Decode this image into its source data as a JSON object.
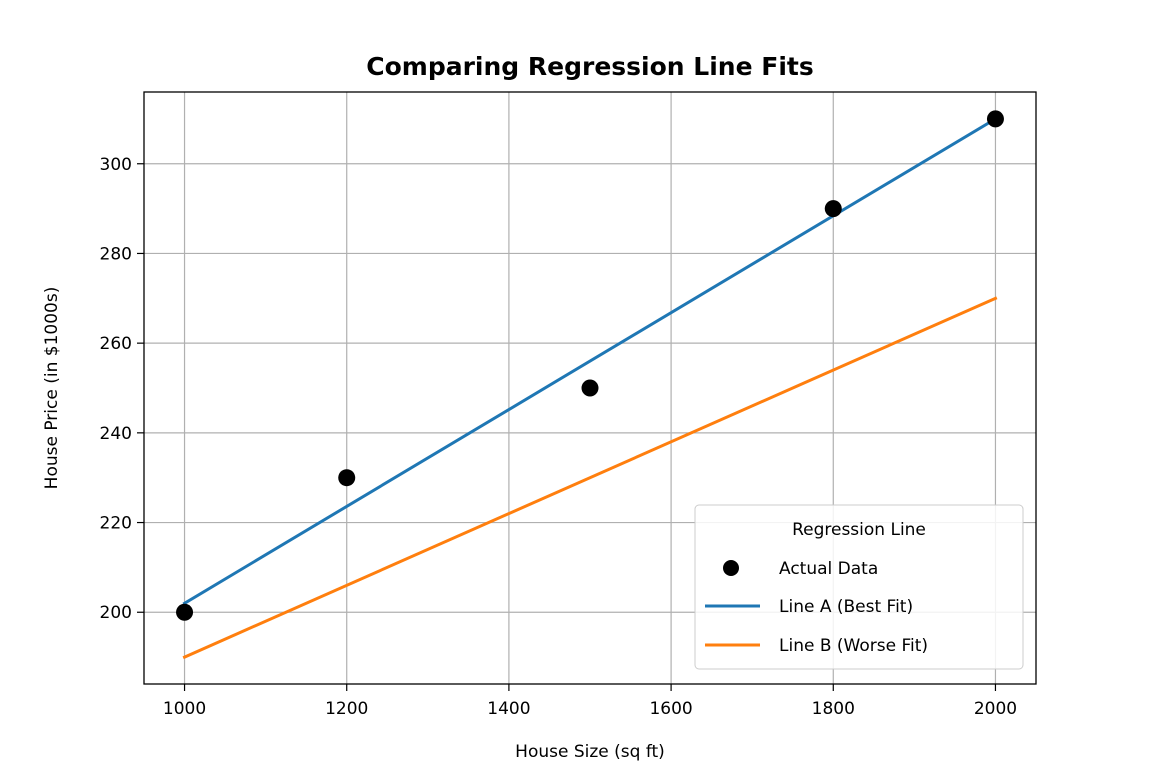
{
  "chart_data": {
    "type": "scatter",
    "title": "Comparing Regression Line Fits",
    "xlabel": "House Size (sq ft)",
    "ylabel": "House Price (in $1000s)",
    "xlim": [
      950,
      2050
    ],
    "ylim": [
      184,
      316
    ],
    "x_ticks": [
      1000,
      1200,
      1400,
      1600,
      1800,
      2000
    ],
    "y_ticks": [
      200,
      220,
      240,
      260,
      280,
      300
    ],
    "grid": true,
    "legend": {
      "title": "Regression Line",
      "placement": "lower-right"
    },
    "scatter_series": {
      "name": "Actual Data",
      "color": "#000000",
      "points": [
        {
          "x": 1000,
          "y": 200
        },
        {
          "x": 1200,
          "y": 230
        },
        {
          "x": 1500,
          "y": 250
        },
        {
          "x": 1800,
          "y": 290
        },
        {
          "x": 2000,
          "y": 310
        }
      ]
    },
    "line_series": [
      {
        "name": "Line A (Best Fit)",
        "color": "#1f77b4",
        "points": [
          {
            "x": 1000,
            "y": 202
          },
          {
            "x": 2000,
            "y": 310
          }
        ]
      },
      {
        "name": "Line B (Worse Fit)",
        "color": "#ff7f0e",
        "points": [
          {
            "x": 1000,
            "y": 190
          },
          {
            "x": 2000,
            "y": 270
          }
        ]
      }
    ]
  }
}
